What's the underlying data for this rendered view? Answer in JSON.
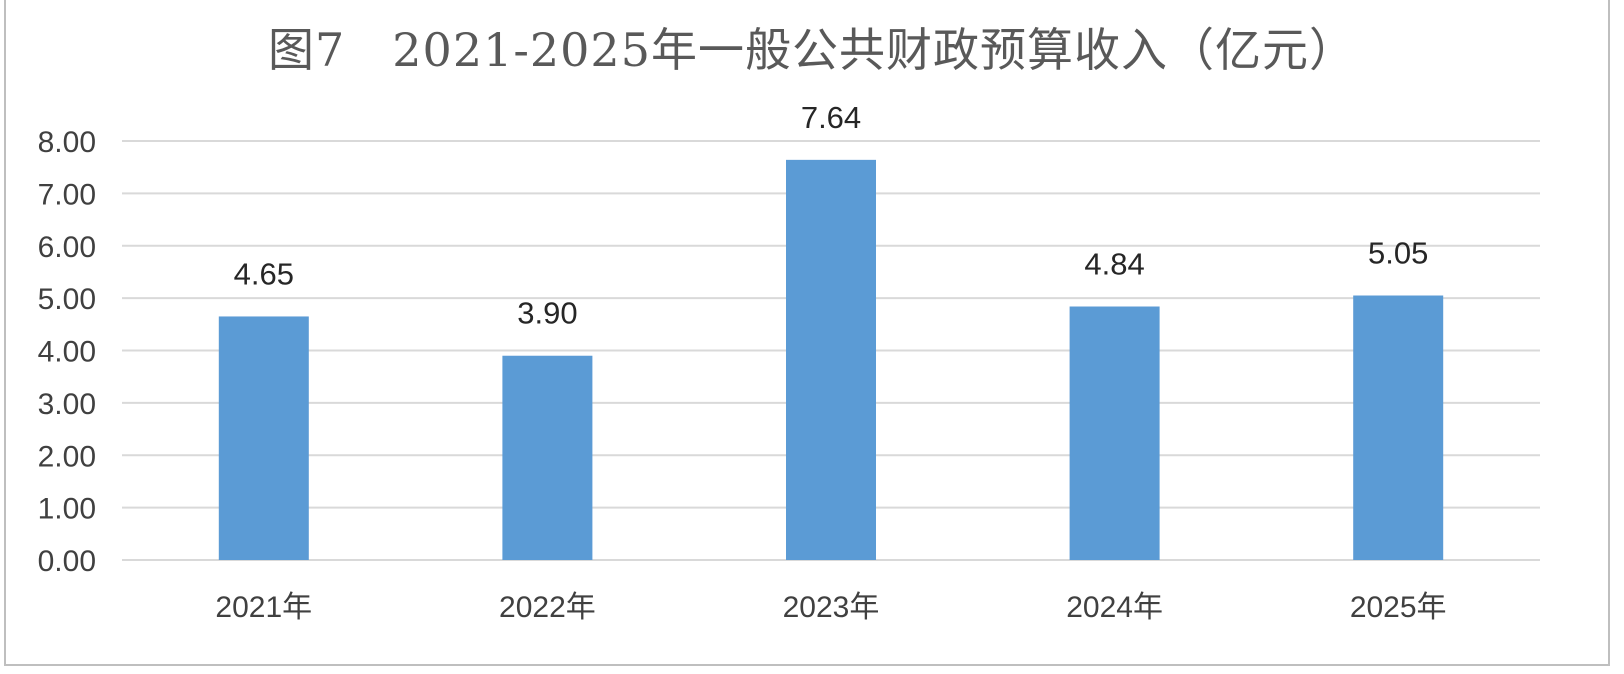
{
  "chart_data": {
    "type": "bar",
    "title": "图7　2021-2025年一般公共财政预算收入（亿元）",
    "categories": [
      "2021年",
      "2022年",
      "2023年",
      "2024年",
      "2025年"
    ],
    "values": [
      4.65,
      3.9,
      7.64,
      4.84,
      5.05
    ],
    "value_labels": [
      "4.65",
      "3.90",
      "7.64",
      "4.84",
      "5.05"
    ],
    "xlabel": "",
    "ylabel": "",
    "ylim": [
      0,
      8
    ],
    "yticks": [
      "0.00",
      "1.00",
      "2.00",
      "3.00",
      "4.00",
      "5.00",
      "6.00",
      "7.00",
      "8.00"
    ],
    "grid": true,
    "legend": "none",
    "bar_color": "#5b9bd5",
    "grid_color": "#d9d9d9"
  }
}
